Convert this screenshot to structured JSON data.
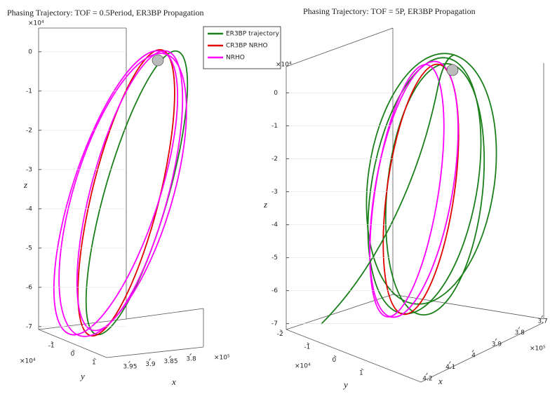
{
  "chart_data": [
    {
      "type": "line3d",
      "title": "Phasing Trajectory: TOF = 0.5Period, ER3BP Propagation",
      "series": [
        {
          "name": "ER3BP trajectory",
          "color": "#1a7f1a"
        },
        {
          "name": "CR3BP NRHO",
          "color": "#e00000"
        },
        {
          "name": "NRHO",
          "color": "#ff00ff"
        }
      ],
      "xlabel": "x",
      "ylabel": "y",
      "zlabel": "z",
      "xlim": [
        3.98,
        3.77
      ],
      "xticks": [
        3.95,
        3.9,
        3.85,
        3.8
      ],
      "x_exponent": "×10⁵",
      "ylim": [
        -1.6,
        1.6
      ],
      "yticks": [
        -1,
        0,
        1
      ],
      "y_exponent": "×10⁴",
      "zlim": [
        -7.2,
        0.3
      ],
      "zticks": [
        0,
        -1,
        -2,
        -3,
        -4,
        -5,
        -6,
        -7
      ],
      "z_exponent": "×10⁴",
      "grid": true
    },
    {
      "type": "line3d",
      "title": "Phasing Trajectory: TOF = 5P, ER3BP Propagation",
      "xlabel": "x",
      "ylabel": "y",
      "zlabel": "z",
      "xlim": [
        4.25,
        3.65
      ],
      "xticks": [
        3.7,
        3.8,
        3.9,
        4,
        4.1,
        4.2
      ],
      "x_exponent": "×10⁵",
      "ylim": [
        -2.5,
        1.6
      ],
      "yticks": [
        -2,
        -1,
        0,
        1
      ],
      "y_exponent": "×10⁴",
      "zlim": [
        -7.2,
        0.5
      ],
      "zticks": [
        0,
        -1,
        -2,
        -3,
        -4,
        -5,
        -6,
        -7
      ],
      "z_exponent": "×10⁴",
      "grid": true
    }
  ]
}
